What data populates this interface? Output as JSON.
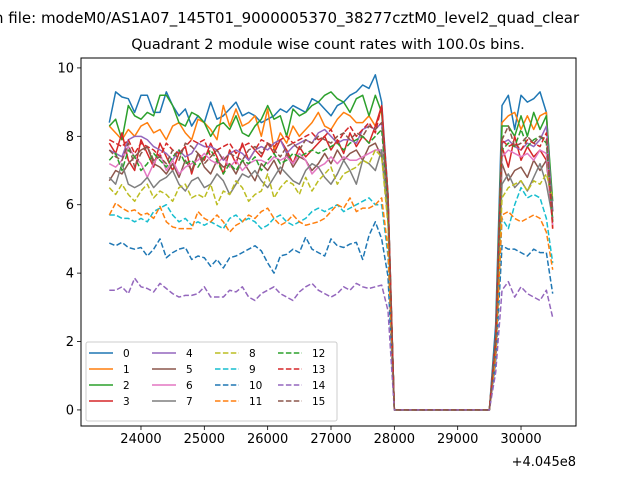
{
  "figure": {
    "suptitle": "n file: modeM0/AS1A07_145T01_9000005370_38277cztM0_level2_quad_clear"
  },
  "chart_data": {
    "type": "line",
    "title": "Quadrant 2 module wise count rates with 100.0s bins.",
    "xlabel": "",
    "ylabel": "",
    "x_offset_label": "+4.045e8",
    "x_offset": 404500000,
    "xlim": [
      23053,
      30868
    ],
    "ylim": [
      -0.47,
      10.29
    ],
    "xticks": [
      24000,
      25000,
      26000,
      27000,
      28000,
      29000,
      30000
    ],
    "xtick_labels": [
      "24000",
      "25000",
      "26000",
      "27000",
      "28000",
      "29000",
      "30000"
    ],
    "yticks": [
      0,
      2,
      4,
      6,
      8,
      10
    ],
    "ytick_labels": [
      "0",
      "2",
      "4",
      "6",
      "8",
      "10"
    ],
    "grid": false,
    "legend_placement": "lower-left",
    "legend_columns": 4,
    "x": {
      "start": 23500,
      "step": 100,
      "count": 71
    },
    "series": [
      {
        "name": "0",
        "color": "#1f77b4",
        "dashed": false,
        "values": [
          8.4,
          9.3,
          9.15,
          9.1,
          8.7,
          9.2,
          9.2,
          8.7,
          8.7,
          9.3,
          8.9,
          8.6,
          8.8,
          8.3,
          8.6,
          8.4,
          9.0,
          8.5,
          8.6,
          8.8,
          9.0,
          8.6,
          8.7,
          8.6,
          8.4,
          8.5,
          8.6,
          8.8,
          8.7,
          8.9,
          8.8,
          8.7,
          9.1,
          9.0,
          8.8,
          8.6,
          8.9,
          9.0,
          9.2,
          9.3,
          9.5,
          9.4,
          9.8,
          9.0,
          6.3,
          0,
          0,
          0,
          0,
          0,
          0,
          0,
          0,
          0,
          0,
          0,
          0,
          0,
          0,
          0,
          0,
          2.5,
          8.9,
          9.2,
          8.2,
          9.2,
          9.0,
          9.1,
          9.3,
          8.7,
          5.8
        ]
      },
      {
        "name": "1",
        "color": "#ff7f0e",
        "dashed": false,
        "values": [
          8.3,
          8.1,
          7.9,
          8.2,
          8.0,
          8.3,
          8.4,
          8.1,
          8.2,
          7.9,
          8.3,
          8.4,
          8.1,
          7.9,
          8.5,
          8.4,
          8.2,
          7.9,
          8.9,
          8.3,
          8.8,
          8.3,
          8.4,
          8.6,
          8.0,
          8.8,
          7.6,
          8.1,
          7.8,
          8.3,
          8.0,
          8.2,
          8.4,
          8.7,
          8.3,
          8.2,
          8.5,
          8.7,
          8.6,
          8.4,
          8.4,
          8.6,
          8.3,
          8.8,
          6.1,
          0,
          0,
          0,
          0,
          0,
          0,
          0,
          0,
          0,
          0,
          0,
          0,
          0,
          0,
          0,
          0,
          2.0,
          8.4,
          8.6,
          8.7,
          8.2,
          8.6,
          8.2,
          8.6,
          8.7,
          5.3
        ]
      },
      {
        "name": "2",
        "color": "#2ca02c",
        "dashed": false,
        "values": [
          8.3,
          8.5,
          7.9,
          8.9,
          8.6,
          8.5,
          8.7,
          8.6,
          9.2,
          9.2,
          8.9,
          8.4,
          8.3,
          8.7,
          8.6,
          8.4,
          8.0,
          8.3,
          8.4,
          8.2,
          8.6,
          8.1,
          8.0,
          8.3,
          8.5,
          8.9,
          8.5,
          8.6,
          8.0,
          8.8,
          8.6,
          8.7,
          8.9,
          9.0,
          9.2,
          9.3,
          9.1,
          9.0,
          8.7,
          9.1,
          9.2,
          8.6,
          9.2,
          8.7,
          6.2,
          0,
          0,
          0,
          0,
          0,
          0,
          0,
          0,
          0,
          0,
          0,
          0,
          0,
          0,
          0,
          0,
          2.2,
          8.3,
          8.3,
          8.0,
          8.6,
          8.0,
          8.7,
          8.2,
          8.6,
          6.1
        ]
      },
      {
        "name": "3",
        "color": "#d62728",
        "dashed": false,
        "values": [
          7.8,
          7.5,
          8.1,
          7.3,
          7.0,
          7.9,
          7.5,
          7.1,
          7.8,
          7.4,
          7.0,
          7.5,
          7.7,
          6.9,
          7.5,
          7.3,
          7.8,
          7.4,
          6.9,
          7.6,
          7.2,
          7.8,
          7.3,
          7.6,
          7.4,
          7.8,
          7.5,
          7.9,
          7.6,
          7.2,
          7.7,
          7.4,
          7.6,
          7.8,
          8.0,
          7.6,
          7.9,
          7.5,
          8.1,
          7.7,
          8.0,
          7.8,
          8.3,
          8.9,
          6.0,
          0,
          0,
          0,
          0,
          0,
          0,
          0,
          0,
          0,
          0,
          0,
          0,
          0,
          0,
          0,
          0,
          2.0,
          7.7,
          7.1,
          8.0,
          7.3,
          7.7,
          7.4,
          7.6,
          7.3,
          5.5
        ]
      },
      {
        "name": "4",
        "color": "#9467bd",
        "dashed": false,
        "values": [
          7.6,
          7.5,
          7.4,
          7.9,
          8.0,
          8.0,
          7.9,
          7.7,
          7.6,
          7.5,
          7.3,
          7.6,
          7.4,
          7.5,
          7.8,
          7.7,
          7.7,
          7.6,
          7.3,
          7.5,
          7.6,
          7.5,
          7.3,
          7.6,
          7.7,
          7.6,
          7.8,
          7.9,
          7.5,
          7.7,
          7.8,
          7.9,
          7.8,
          8.1,
          8.2,
          8.0,
          7.8,
          7.9,
          7.9,
          7.8,
          8.2,
          8.3,
          8.2,
          8.4,
          6.1,
          0,
          0,
          0,
          0,
          0,
          0,
          0,
          0,
          0,
          0,
          0,
          0,
          0,
          0,
          0,
          0,
          2.1,
          7.8,
          7.9,
          7.7,
          7.6,
          7.8,
          7.7,
          7.9,
          8.3,
          5.8
        ]
      },
      {
        "name": "5",
        "color": "#8c564b",
        "dashed": false,
        "values": [
          6.7,
          7.0,
          6.9,
          7.2,
          7.4,
          7.6,
          7.7,
          7.2,
          7.1,
          6.9,
          7.2,
          6.8,
          7.3,
          7.0,
          7.5,
          7.1,
          6.9,
          7.3,
          7.1,
          7.2,
          6.9,
          7.3,
          7.0,
          6.7,
          7.2,
          7.0,
          7.3,
          6.9,
          7.5,
          7.1,
          7.4,
          7.3,
          7.0,
          7.2,
          7.5,
          7.2,
          7.6,
          7.3,
          7.5,
          7.6,
          7.3,
          7.7,
          7.8,
          7.4,
          5.8,
          0,
          0,
          0,
          0,
          0,
          0,
          0,
          0,
          0,
          0,
          0,
          0,
          0,
          0,
          0,
          0,
          1.8,
          7.2,
          6.7,
          7.0,
          7.1,
          6.8,
          7.3,
          7.0,
          7.3,
          5.6
        ]
      },
      {
        "name": "6",
        "color": "#e377c2",
        "dashed": false,
        "values": [
          7.2,
          7.1,
          7.3,
          7.7,
          7.4,
          7.2,
          6.8,
          7.2,
          7.5,
          7.0,
          7.3,
          6.9,
          7.1,
          7.2,
          7.3,
          7.5,
          7.3,
          7.2,
          7.4,
          7.1,
          7.3,
          7.0,
          7.2,
          7.3,
          7.3,
          7.2,
          7.4,
          7.3,
          7.4,
          7.2,
          7.5,
          7.3,
          6.9,
          7.1,
          7.2,
          7.4,
          7.2,
          7.4,
          7.3,
          7.3,
          7.4,
          7.5,
          7.6,
          7.6,
          5.9,
          0,
          0,
          0,
          0,
          0,
          0,
          0,
          0,
          0,
          0,
          0,
          0,
          0,
          0,
          0,
          0,
          1.9,
          7.4,
          7.6,
          7.5,
          7.4,
          7.5,
          7.3,
          7.6,
          7.5,
          5.4
        ]
      },
      {
        "name": "7",
        "color": "#7f7f7f",
        "dashed": false,
        "values": [
          6.8,
          6.6,
          7.2,
          6.6,
          6.5,
          6.6,
          6.8,
          6.5,
          6.7,
          6.8,
          7.0,
          6.6,
          6.4,
          6.7,
          6.8,
          6.5,
          6.6,
          6.9,
          6.7,
          6.3,
          6.6,
          6.9,
          6.8,
          7.0,
          6.7,
          6.5,
          6.8,
          7.1,
          6.9,
          6.7,
          6.6,
          7.0,
          7.2,
          7.1,
          6.8,
          6.6,
          6.9,
          7.3,
          7.0,
          6.6,
          7.3,
          7.2,
          7.0,
          7.6,
          5.5,
          0,
          0,
          0,
          0,
          0,
          0,
          0,
          0,
          0,
          0,
          0,
          0,
          0,
          0,
          0,
          0,
          1.8,
          6.6,
          6.9,
          6.5,
          6.7,
          6.4,
          6.8,
          7.2,
          6.6,
          5.6
        ]
      },
      {
        "name": "8",
        "color": "#bcbd22",
        "dashed": true,
        "values": [
          6.5,
          6.3,
          6.6,
          6.3,
          6.1,
          6.4,
          6.6,
          6.2,
          6.4,
          6.3,
          6.1,
          6.5,
          6.6,
          6.2,
          6.3,
          6.2,
          6.6,
          6.0,
          6.4,
          6.3,
          6.7,
          6.5,
          6.1,
          6.3,
          6.4,
          6.9,
          6.2,
          6.5,
          6.7,
          6.6,
          6.3,
          6.8,
          6.4,
          6.7,
          6.9,
          7.1,
          6.6,
          6.9,
          7.0,
          7.1,
          7.3,
          7.2,
          7.6,
          7.4,
          5.4,
          0,
          0,
          0,
          0,
          0,
          0,
          0,
          0,
          0,
          0,
          0,
          0,
          0,
          0,
          0,
          0,
          1.7,
          6.2,
          6.5,
          6.6,
          6.7,
          6.4,
          6.7,
          6.6,
          6.9,
          6.2
        ]
      },
      {
        "name": "9",
        "color": "#17becf",
        "dashed": true,
        "values": [
          5.7,
          5.7,
          5.6,
          5.6,
          5.5,
          5.6,
          5.5,
          5.8,
          5.9,
          6.0,
          5.7,
          5.5,
          5.6,
          5.4,
          5.5,
          5.4,
          5.5,
          5.4,
          5.3,
          5.6,
          5.7,
          5.5,
          5.6,
          5.5,
          5.3,
          5.4,
          5.6,
          5.7,
          5.5,
          5.4,
          5.5,
          5.6,
          5.8,
          5.9,
          5.8,
          5.9,
          6.0,
          5.8,
          5.9,
          6.0,
          6.1,
          6.2,
          6.0,
          6.0,
          4.5,
          0,
          0,
          0,
          0,
          0,
          0,
          0,
          0,
          0,
          0,
          0,
          0,
          0,
          0,
          0,
          0,
          1.5,
          5.6,
          5.3,
          6.0,
          6.5,
          6.2,
          6.3,
          6.2,
          5.6,
          4.3
        ]
      },
      {
        "name": "10",
        "color": "#1f77b4",
        "dashed": true,
        "values": [
          4.88,
          4.8,
          4.9,
          4.75,
          4.7,
          4.75,
          4.5,
          4.7,
          5.0,
          4.45,
          4.6,
          4.7,
          4.75,
          4.4,
          4.5,
          4.45,
          4.2,
          4.4,
          4.15,
          4.45,
          4.5,
          4.6,
          4.7,
          4.8,
          4.65,
          4.3,
          4.0,
          4.5,
          4.55,
          4.7,
          4.6,
          5.05,
          4.7,
          4.6,
          4.5,
          5.0,
          4.8,
          4.75,
          4.85,
          4.9,
          4.4,
          5.1,
          5.5,
          5.0,
          3.9,
          0,
          0,
          0,
          0,
          0,
          0,
          0,
          0,
          0,
          0,
          0,
          0,
          0,
          0,
          0,
          0,
          1.4,
          4.8,
          4.7,
          4.7,
          4.6,
          4.5,
          4.7,
          4.6,
          4.6,
          3.4
        ]
      },
      {
        "name": "11",
        "color": "#ff7f0e",
        "dashed": true,
        "values": [
          5.7,
          6.05,
          5.9,
          5.8,
          5.85,
          5.7,
          5.75,
          5.6,
          5.95,
          5.5,
          5.35,
          5.3,
          5.3,
          5.3,
          5.8,
          5.6,
          5.5,
          5.7,
          5.5,
          5.2,
          5.4,
          5.5,
          5.7,
          5.6,
          5.8,
          5.9,
          5.6,
          5.4,
          5.5,
          5.7,
          5.5,
          5.4,
          5.45,
          5.5,
          5.6,
          5.8,
          6.0,
          5.9,
          6.2,
          5.8,
          5.9,
          5.9,
          6.0,
          6.2,
          4.7,
          0,
          0,
          0,
          0,
          0,
          0,
          0,
          0,
          0,
          0,
          0,
          0,
          0,
          0,
          0,
          0,
          1.6,
          5.7,
          5.8,
          5.6,
          5.5,
          5.6,
          5.7,
          5.6,
          5.2,
          4.1
        ]
      },
      {
        "name": "12",
        "color": "#2ca02c",
        "dashed": true,
        "values": [
          7.3,
          7.5,
          7.0,
          7.6,
          7.4,
          7.0,
          7.2,
          7.5,
          7.3,
          7.1,
          7.4,
          7.6,
          7.2,
          7.3,
          7.1,
          7.4,
          7.6,
          7.3,
          6.9,
          7.2,
          7.0,
          7.3,
          7.2,
          7.4,
          7.0,
          7.3,
          7.5,
          7.2,
          7.3,
          7.5,
          7.4,
          7.5,
          7.6,
          7.5,
          7.6,
          7.7,
          7.8,
          7.6,
          7.8,
          7.9,
          8.0,
          7.8,
          8.0,
          8.2,
          6.0,
          0,
          0,
          0,
          0,
          0,
          0,
          0,
          0,
          0,
          0,
          0,
          0,
          0,
          0,
          0,
          0,
          2.0,
          7.6,
          7.8,
          7.7,
          8.2,
          7.7,
          7.9,
          8.0,
          7.8,
          5.5
        ]
      },
      {
        "name": "13",
        "color": "#d62728",
        "dashed": true,
        "values": [
          7.9,
          7.8,
          7.7,
          7.9,
          7.5,
          7.8,
          7.7,
          7.6,
          7.4,
          7.8,
          7.6,
          7.5,
          7.7,
          7.9,
          7.8,
          7.9,
          7.4,
          7.6,
          7.7,
          7.8,
          7.5,
          7.7,
          7.8,
          7.6,
          7.9,
          7.8,
          7.7,
          7.9,
          8.0,
          7.8,
          7.9,
          8.0,
          8.1,
          7.9,
          8.0,
          8.2,
          7.8,
          8.1,
          8.3,
          8.0,
          8.2,
          8.4,
          8.1,
          8.9,
          6.3,
          0,
          0,
          0,
          0,
          0,
          0,
          0,
          0,
          0,
          0,
          0,
          0,
          0,
          0,
          0,
          0,
          2.1,
          7.9,
          7.7,
          7.8,
          7.6,
          7.9,
          7.8,
          7.7,
          8.1,
          5.3
        ]
      },
      {
        "name": "14",
        "color": "#9467bd",
        "dashed": true,
        "values": [
          3.5,
          3.5,
          3.6,
          3.4,
          3.85,
          3.6,
          3.55,
          3.45,
          3.7,
          3.55,
          3.4,
          3.3,
          3.35,
          3.35,
          3.4,
          3.6,
          3.3,
          3.3,
          3.3,
          3.5,
          3.45,
          3.6,
          3.3,
          3.2,
          3.4,
          3.5,
          3.6,
          3.4,
          3.3,
          3.2,
          3.45,
          3.6,
          3.7,
          3.5,
          3.4,
          3.3,
          3.4,
          3.6,
          3.5,
          3.7,
          3.6,
          3.55,
          3.6,
          3.65,
          2.9,
          0,
          0,
          0,
          0,
          0,
          0,
          0,
          0,
          0,
          0,
          0,
          0,
          0,
          0,
          0,
          0,
          1.1,
          3.5,
          3.75,
          3.3,
          3.6,
          3.4,
          3.3,
          3.2,
          3.5,
          2.7
        ]
      },
      {
        "name": "15",
        "color": "#8c564b",
        "dashed": true,
        "values": [
          7.6,
          7.4,
          7.3,
          7.8,
          7.1,
          7.5,
          7.7,
          7.3,
          7.4,
          7.2,
          7.6,
          7.3,
          7.8,
          7.7,
          7.5,
          7.2,
          7.4,
          7.6,
          7.3,
          7.5,
          7.4,
          7.3,
          7.6,
          7.7,
          7.5,
          7.8,
          7.6,
          7.4,
          7.7,
          7.8,
          7.6,
          7.9,
          7.8,
          8.0,
          7.9,
          7.8,
          8.0,
          8.1,
          7.9,
          8.1,
          8.0,
          8.3,
          8.2,
          8.4,
          6.1,
          0,
          0,
          0,
          0,
          0,
          0,
          0,
          0,
          0,
          0,
          0,
          0,
          0,
          0,
          0,
          0,
          2.0,
          7.9,
          8.3,
          7.7,
          7.8,
          8.0,
          7.8,
          8.0,
          7.9,
          5.8
        ]
      }
    ]
  }
}
